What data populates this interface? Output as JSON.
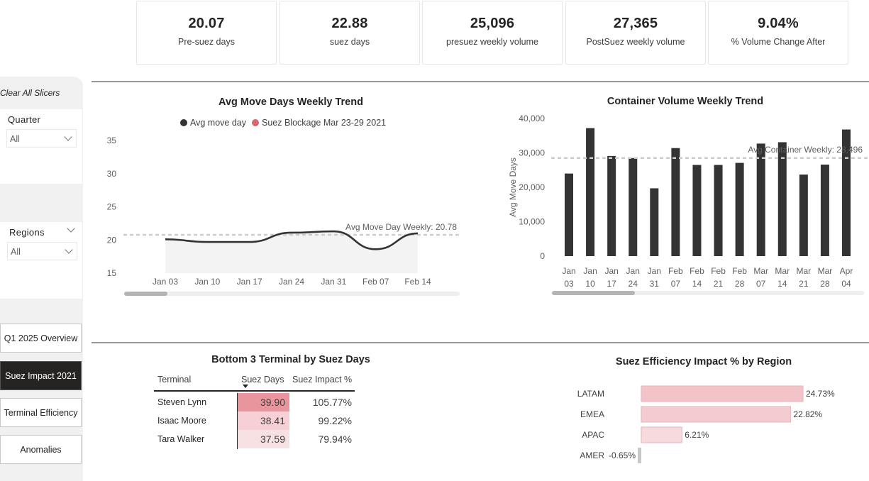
{
  "kpis": [
    {
      "value": "20.07",
      "label": "Pre-suez days"
    },
    {
      "value": "22.88",
      "label": "suez days"
    },
    {
      "value": "25,096",
      "label": "presuez weekly volume"
    },
    {
      "value": "27,365",
      "label": "PostSuez weekly volume"
    },
    {
      "value": "9.04%",
      "label": "% Volume Change After"
    }
  ],
  "sidebar": {
    "clear_slicers": "Clear All Slicers",
    "quarter": {
      "title": "Quarter",
      "value": "All"
    },
    "regions": {
      "title": "Regions",
      "value": "All"
    },
    "nav": [
      {
        "label": "Q1 2025 Overview",
        "active": false
      },
      {
        "label": "Suez Impact 2021",
        "active": true
      },
      {
        "label": "Terminal Efficiency",
        "active": false
      },
      {
        "label": "Anomalies",
        "active": false
      }
    ]
  },
  "colors": {
    "series_dark": "#333333",
    "suez_marker": "#d9656f",
    "area_fill": "#f3f3f3",
    "ref_line": "#cccccc",
    "bar_pink_dark": "#f2c4c9",
    "bar_pink_mid": "#f3ccd1",
    "bar_pink_light": "#f7dadd",
    "bar_negative": "#c8c8c8",
    "heat_high": "#e8959e",
    "heat_mid": "#f6d0d4",
    "heat_low": "#f6e0e2"
  },
  "chart_data": [
    {
      "type": "line",
      "title": "Avg Move Days Weekly Trend",
      "legend": [
        {
          "name": "Avg move day",
          "color": "#333333"
        },
        {
          "name": "Suez Blockage Mar 23-29 2021",
          "color": "#d9656f"
        }
      ],
      "x": [
        "Jan 03",
        "Jan 10",
        "Jan 17",
        "Jan 24",
        "Jan 31",
        "Feb 07",
        "Feb 14"
      ],
      "series": [
        {
          "name": "Avg move day",
          "values": [
            20.1,
            19.7,
            19.7,
            21.1,
            21.3,
            18.6,
            21.0
          ]
        }
      ],
      "ylim": [
        15,
        35
      ],
      "yticks": [
        15,
        20,
        25,
        30,
        35
      ],
      "reference_line": {
        "label": "Avg Move Day Weekly: 20.78",
        "value": 20.78
      },
      "xlabel": "",
      "ylabel": ""
    },
    {
      "type": "bar",
      "title": "Container Volume Weekly Trend",
      "categories": [
        [
          "Jan",
          "03"
        ],
        [
          "Jan",
          "10"
        ],
        [
          "Jan",
          "17"
        ],
        [
          "Jan",
          "24"
        ],
        [
          "Jan",
          "31"
        ],
        [
          "Feb",
          "07"
        ],
        [
          "Feb",
          "14"
        ],
        [
          "Feb",
          "21"
        ],
        [
          "Feb",
          "28"
        ],
        [
          "Mar",
          "07"
        ],
        [
          "Mar",
          "14"
        ],
        [
          "Mar",
          "21"
        ],
        [
          "Mar",
          "28"
        ],
        [
          "Apr",
          "04"
        ]
      ],
      "values": [
        24000,
        37200,
        29100,
        28500,
        19700,
        31400,
        26500,
        26500,
        27100,
        32700,
        33100,
        23700,
        26600,
        36800
      ],
      "ylim": [
        0,
        40000
      ],
      "yticks": [
        "0",
        "10,000",
        "20,000",
        "30,000",
        "40,000"
      ],
      "ytick_values": [
        0,
        10000,
        20000,
        30000,
        40000
      ],
      "ylabel": "Avg Move Days",
      "xlabel": "",
      "reference_line": {
        "label": "Avg Container Weekly: 28,496",
        "value": 28496
      }
    },
    {
      "type": "table",
      "title": "Bottom 3 Terminal by Suez Days",
      "columns": [
        "Terminal",
        "Suez Days",
        "Suez Impact %"
      ],
      "sort": {
        "column": "Suez Days",
        "direction": "desc"
      },
      "rows": [
        {
          "terminal": "Steven Lynn",
          "suez_days": "39.90",
          "suez_impact": "105.77%"
        },
        {
          "terminal": "Isaac Moore",
          "suez_days": "38.41",
          "suez_impact": "99.22%"
        },
        {
          "terminal": "Tara Walker",
          "suez_days": "37.59",
          "suez_impact": "79.94%"
        }
      ]
    },
    {
      "type": "bar",
      "orientation": "horizontal",
      "title": "Suez Efficiency Impact % by Region",
      "categories": [
        "LATAM",
        "EMEA",
        "APAC",
        "AMER"
      ],
      "values": [
        24.73,
        22.82,
        6.21,
        -0.65
      ],
      "labels": [
        "24.73%",
        "22.82%",
        "6.21%",
        "-0.65%"
      ]
    }
  ]
}
